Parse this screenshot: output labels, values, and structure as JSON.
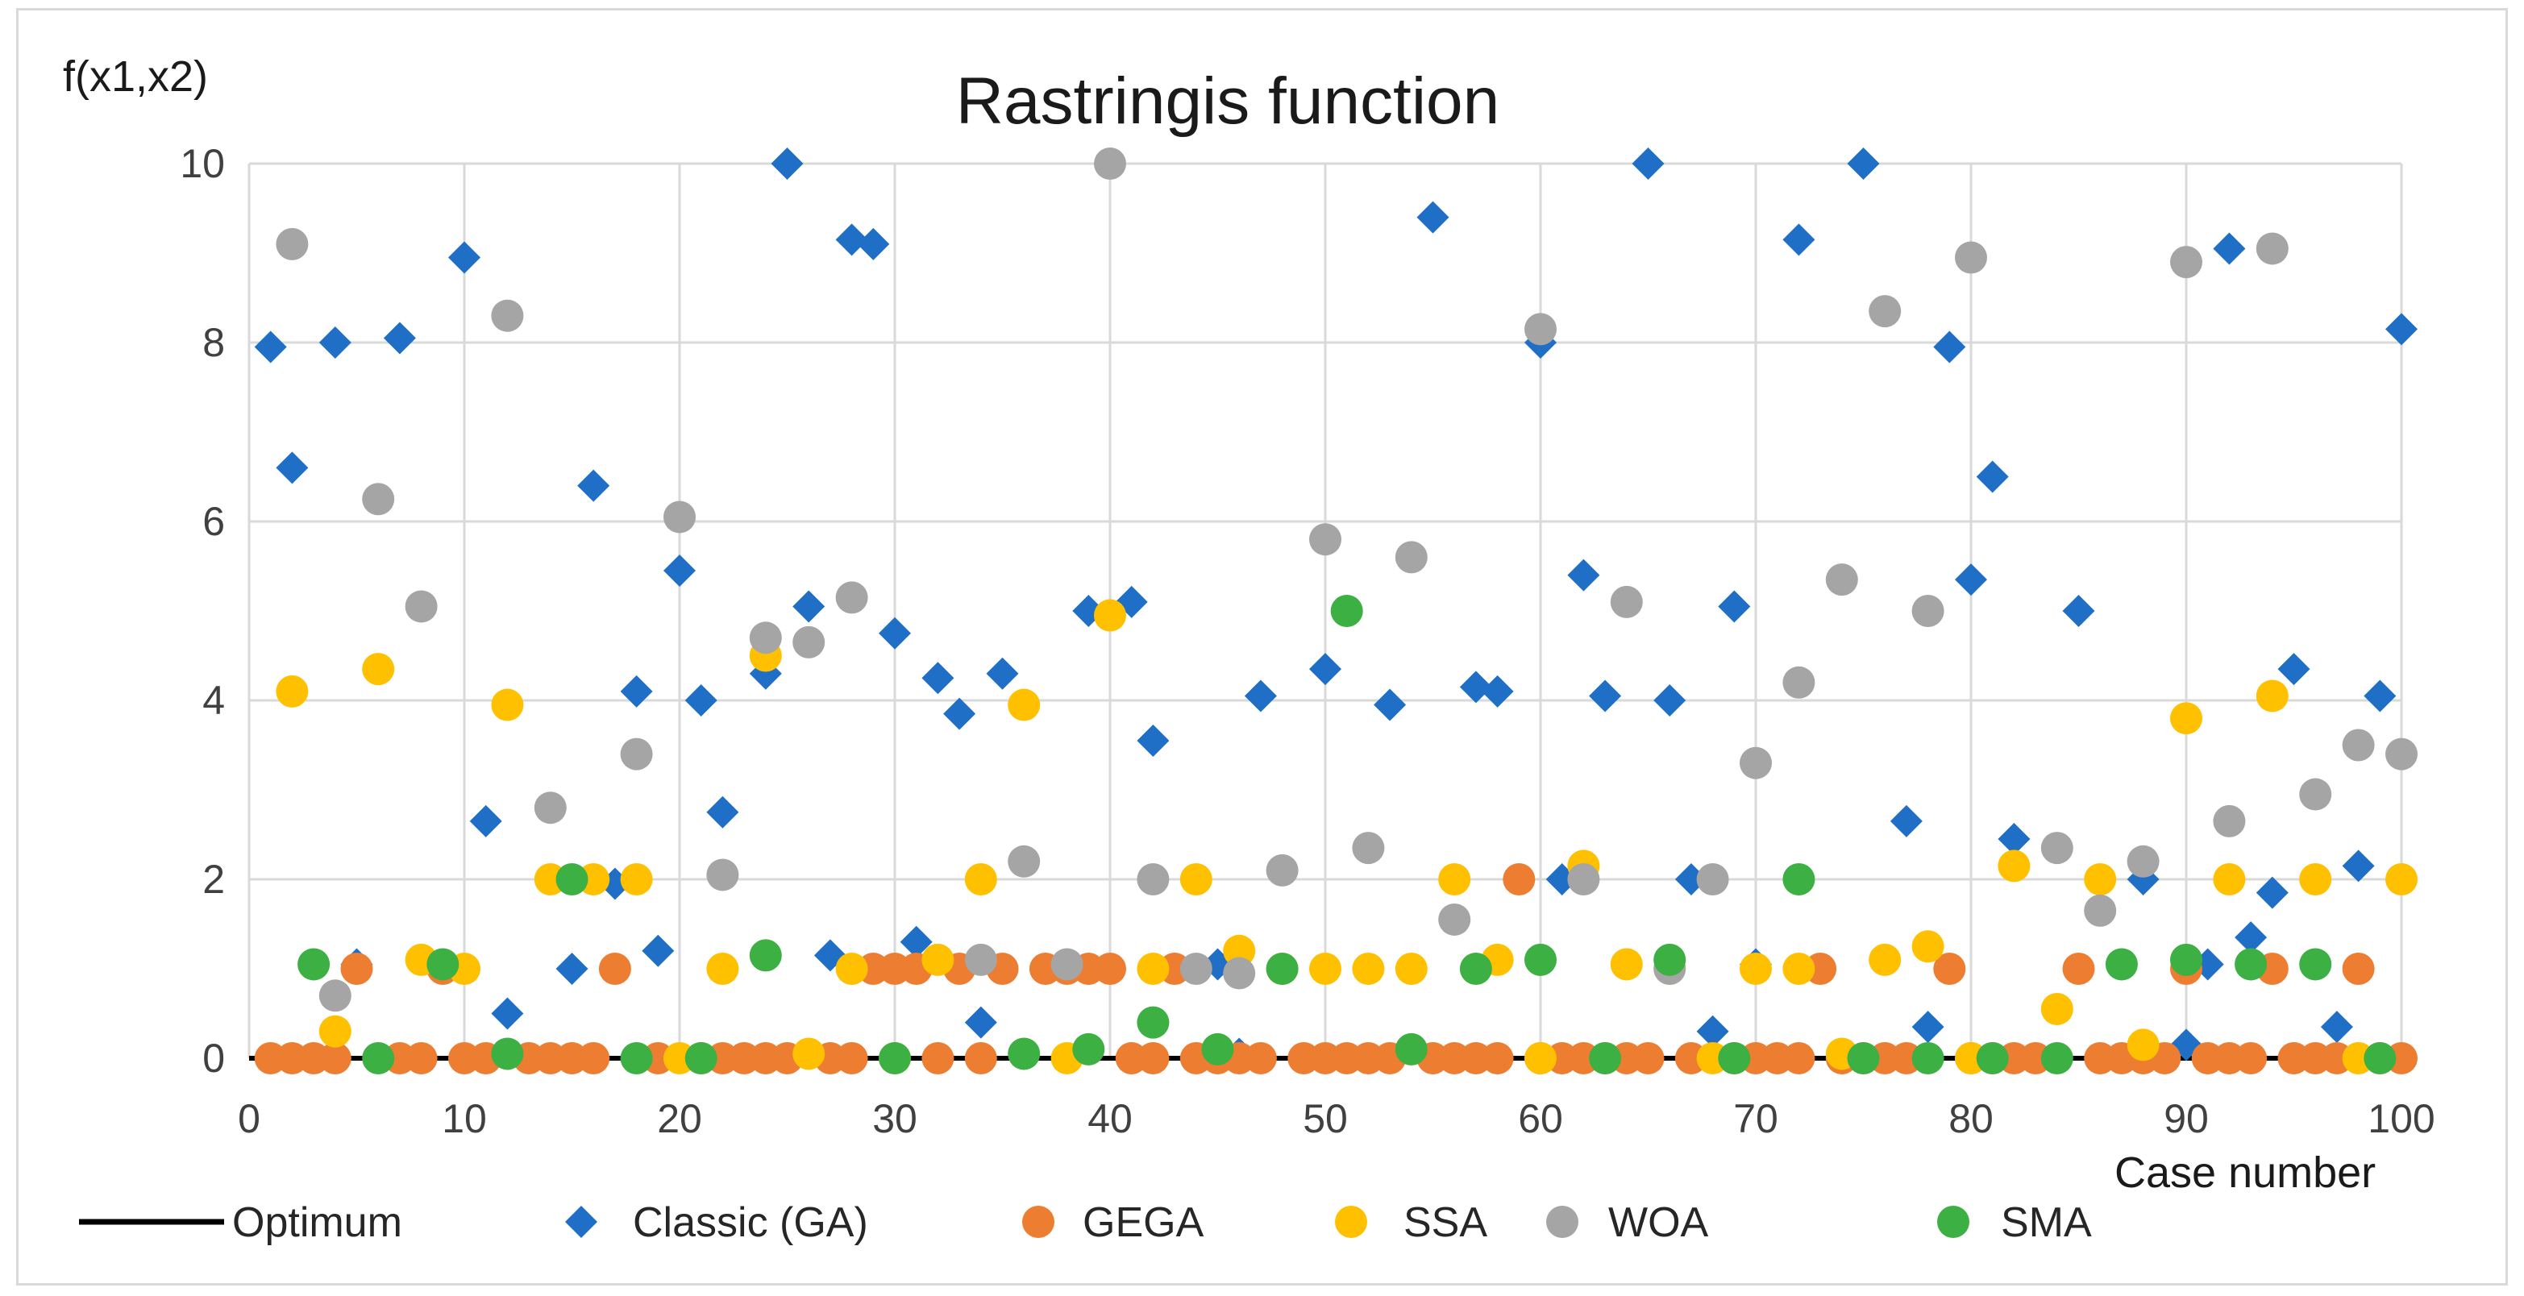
{
  "chart_data": {
    "type": "scatter",
    "title": "Rastringis function",
    "ylabel": "f(x1,x2)",
    "xlabel": "Case number",
    "xlim": [
      0,
      100
    ],
    "ylim": [
      0,
      10
    ],
    "xticks": [
      0,
      10,
      20,
      30,
      40,
      50,
      60,
      70,
      80,
      90,
      100
    ],
    "yticks": [
      0,
      2,
      4,
      6,
      8,
      10
    ],
    "grid": true,
    "legend_position": "bottom",
    "series": [
      {
        "name": "Optimum",
        "marker": "line",
        "color": "#000000",
        "points": [
          [
            0,
            0
          ],
          [
            100,
            0
          ]
        ]
      },
      {
        "name": "Classic (GA)",
        "marker": "diamond",
        "color": "#1F6FC6",
        "points": [
          [
            1,
            7.95
          ],
          [
            2,
            6.6
          ],
          [
            4,
            8.0
          ],
          [
            5,
            1.05
          ],
          [
            7,
            8.05
          ],
          [
            10,
            8.95
          ],
          [
            11,
            2.65
          ],
          [
            12,
            0.5
          ],
          [
            15,
            1.0
          ],
          [
            16,
            6.4
          ],
          [
            17,
            1.95
          ],
          [
            18,
            4.1
          ],
          [
            19,
            1.2
          ],
          [
            20,
            5.45
          ],
          [
            21,
            4.0
          ],
          [
            22,
            2.75
          ],
          [
            24,
            4.3
          ],
          [
            25,
            10.0
          ],
          [
            26,
            5.05
          ],
          [
            27,
            1.15
          ],
          [
            28,
            9.15
          ],
          [
            29,
            9.1
          ],
          [
            30,
            4.75
          ],
          [
            31,
            1.3
          ],
          [
            32,
            4.25
          ],
          [
            33,
            3.85
          ],
          [
            34,
            0.4
          ],
          [
            35,
            4.3
          ],
          [
            39,
            5.0
          ],
          [
            41,
            5.1
          ],
          [
            42,
            3.55
          ],
          [
            45,
            1.05
          ],
          [
            46,
            0.05
          ],
          [
            47,
            4.05
          ],
          [
            50,
            4.35
          ],
          [
            53,
            3.95
          ],
          [
            55,
            9.4
          ],
          [
            57,
            4.15
          ],
          [
            58,
            4.1
          ],
          [
            60,
            8.0
          ],
          [
            61,
            2.0
          ],
          [
            62,
            5.4
          ],
          [
            63,
            4.05
          ],
          [
            65,
            10.0
          ],
          [
            66,
            4.0
          ],
          [
            67,
            2.0
          ],
          [
            68,
            0.3
          ],
          [
            69,
            5.05
          ],
          [
            70,
            1.05
          ],
          [
            72,
            9.15
          ],
          [
            75,
            10.0
          ],
          [
            77,
            2.65
          ],
          [
            78,
            0.35
          ],
          [
            79,
            7.95
          ],
          [
            80,
            5.35
          ],
          [
            81,
            6.5
          ],
          [
            82,
            2.45
          ],
          [
            85,
            5.0
          ],
          [
            88,
            2.0
          ],
          [
            90,
            0.15
          ],
          [
            91,
            1.05
          ],
          [
            92,
            9.05
          ],
          [
            93,
            1.35
          ],
          [
            94,
            1.85
          ],
          [
            95,
            4.35
          ],
          [
            97,
            0.35
          ],
          [
            98,
            2.15
          ],
          [
            99,
            4.05
          ],
          [
            100,
            8.15
          ]
        ]
      },
      {
        "name": "GEGA",
        "marker": "circle",
        "color": "#ED7D31",
        "points": [
          [
            1,
            0
          ],
          [
            2,
            0
          ],
          [
            3,
            0
          ],
          [
            4,
            0
          ],
          [
            5,
            1.0
          ],
          [
            7,
            0
          ],
          [
            8,
            0
          ],
          [
            9,
            1.0
          ],
          [
            10,
            0
          ],
          [
            11,
            0
          ],
          [
            13,
            0
          ],
          [
            14,
            0
          ],
          [
            15,
            0
          ],
          [
            16,
            0
          ],
          [
            17,
            1.0
          ],
          [
            19,
            0
          ],
          [
            21,
            0
          ],
          [
            22,
            0
          ],
          [
            23,
            0
          ],
          [
            24,
            0
          ],
          [
            25,
            0
          ],
          [
            27,
            0
          ],
          [
            28,
            0
          ],
          [
            29,
            1.0
          ],
          [
            30,
            1.0
          ],
          [
            31,
            1.0
          ],
          [
            32,
            0
          ],
          [
            33,
            1.0
          ],
          [
            34,
            0
          ],
          [
            35,
            1.0
          ],
          [
            37,
            1.0
          ],
          [
            38,
            1.0
          ],
          [
            39,
            1.0
          ],
          [
            40,
            1.0
          ],
          [
            41,
            0
          ],
          [
            42,
            0
          ],
          [
            43,
            1.0
          ],
          [
            44,
            0
          ],
          [
            45,
            0
          ],
          [
            46,
            0
          ],
          [
            47,
            0
          ],
          [
            49,
            0
          ],
          [
            50,
            0
          ],
          [
            51,
            0
          ],
          [
            52,
            0
          ],
          [
            53,
            0
          ],
          [
            55,
            0
          ],
          [
            56,
            0
          ],
          [
            57,
            0
          ],
          [
            58,
            0
          ],
          [
            59,
            2.0
          ],
          [
            60,
            0
          ],
          [
            61,
            0
          ],
          [
            62,
            0
          ],
          [
            63,
            0
          ],
          [
            64,
            0
          ],
          [
            65,
            0
          ],
          [
            67,
            0
          ],
          [
            69,
            0
          ],
          [
            70,
            0
          ],
          [
            71,
            0
          ],
          [
            72,
            0
          ],
          [
            73,
            1.0
          ],
          [
            74,
            0
          ],
          [
            75,
            0
          ],
          [
            76,
            0
          ],
          [
            77,
            0
          ],
          [
            79,
            1.0
          ],
          [
            80,
            0
          ],
          [
            81,
            0
          ],
          [
            82,
            0
          ],
          [
            83,
            0
          ],
          [
            85,
            1.0
          ],
          [
            86,
            0
          ],
          [
            87,
            0
          ],
          [
            88,
            0
          ],
          [
            89,
            0
          ],
          [
            90,
            1.0
          ],
          [
            91,
            0
          ],
          [
            92,
            0
          ],
          [
            93,
            0
          ],
          [
            94,
            1.0
          ],
          [
            95,
            0
          ],
          [
            96,
            0
          ],
          [
            97,
            0
          ],
          [
            98,
            1.0
          ],
          [
            99,
            0
          ],
          [
            100,
            0
          ]
        ]
      },
      {
        "name": "SSA",
        "marker": "circle",
        "color": "#FFC000",
        "points": [
          [
            2,
            4.1
          ],
          [
            4,
            0.3
          ],
          [
            6,
            4.35
          ],
          [
            8,
            1.1
          ],
          [
            10,
            1.0
          ],
          [
            12,
            3.95
          ],
          [
            14,
            2.0
          ],
          [
            16,
            2.0
          ],
          [
            18,
            2.0
          ],
          [
            20,
            0
          ],
          [
            22,
            1.0
          ],
          [
            24,
            4.5
          ],
          [
            26,
            0.05
          ],
          [
            28,
            1.0
          ],
          [
            30,
            0
          ],
          [
            32,
            1.1
          ],
          [
            34,
            2.0
          ],
          [
            36,
            3.95
          ],
          [
            38,
            0
          ],
          [
            40,
            4.95
          ],
          [
            42,
            1.0
          ],
          [
            44,
            2.0
          ],
          [
            46,
            1.2
          ],
          [
            48,
            1.0
          ],
          [
            50,
            1.0
          ],
          [
            52,
            1.0
          ],
          [
            54,
            1.0
          ],
          [
            56,
            2.0
          ],
          [
            58,
            1.1
          ],
          [
            60,
            0
          ],
          [
            62,
            2.15
          ],
          [
            64,
            1.05
          ],
          [
            66,
            1.0
          ],
          [
            68,
            0
          ],
          [
            70,
            1.0
          ],
          [
            72,
            1.0
          ],
          [
            74,
            0.05
          ],
          [
            76,
            1.1
          ],
          [
            78,
            1.25
          ],
          [
            80,
            0
          ],
          [
            82,
            2.15
          ],
          [
            84,
            0.55
          ],
          [
            86,
            2.0
          ],
          [
            88,
            0.15
          ],
          [
            90,
            3.8
          ],
          [
            92,
            2.0
          ],
          [
            94,
            4.05
          ],
          [
            96,
            2.0
          ],
          [
            98,
            0
          ],
          [
            100,
            2.0
          ]
        ]
      },
      {
        "name": "WOA",
        "marker": "circle",
        "color": "#A5A5A5",
        "points": [
          [
            2,
            9.1
          ],
          [
            4,
            0.7
          ],
          [
            6,
            6.25
          ],
          [
            8,
            5.05
          ],
          [
            12,
            8.3
          ],
          [
            14,
            2.8
          ],
          [
            18,
            3.4
          ],
          [
            20,
            6.05
          ],
          [
            22,
            2.05
          ],
          [
            24,
            4.7
          ],
          [
            26,
            4.65
          ],
          [
            28,
            5.15
          ],
          [
            34,
            1.1
          ],
          [
            36,
            2.2
          ],
          [
            38,
            1.05
          ],
          [
            40,
            10.0
          ],
          [
            42,
            2.0
          ],
          [
            44,
            1.0
          ],
          [
            46,
            0.95
          ],
          [
            48,
            2.1
          ],
          [
            50,
            5.8
          ],
          [
            52,
            2.35
          ],
          [
            54,
            5.6
          ],
          [
            56,
            1.55
          ],
          [
            60,
            8.15
          ],
          [
            62,
            2.0
          ],
          [
            64,
            5.1
          ],
          [
            66,
            1.0
          ],
          [
            68,
            2.0
          ],
          [
            70,
            3.3
          ],
          [
            72,
            4.2
          ],
          [
            74,
            5.35
          ],
          [
            76,
            8.35
          ],
          [
            78,
            5.0
          ],
          [
            80,
            8.95
          ],
          [
            84,
            2.35
          ],
          [
            86,
            1.65
          ],
          [
            88,
            2.2
          ],
          [
            90,
            8.9
          ],
          [
            92,
            2.65
          ],
          [
            94,
            9.05
          ],
          [
            96,
            2.95
          ],
          [
            98,
            3.5
          ],
          [
            100,
            3.4
          ]
        ]
      },
      {
        "name": "SMA",
        "marker": "circle",
        "color": "#3CB043",
        "points": [
          [
            3,
            1.05
          ],
          [
            6,
            0
          ],
          [
            9,
            1.05
          ],
          [
            12,
            0.05
          ],
          [
            15,
            2.0
          ],
          [
            18,
            0
          ],
          [
            21,
            0
          ],
          [
            24,
            1.15
          ],
          [
            30,
            0
          ],
          [
            36,
            0.05
          ],
          [
            39,
            0.1
          ],
          [
            42,
            0.4
          ],
          [
            45,
            0.1
          ],
          [
            48,
            1.0
          ],
          [
            51,
            5.0
          ],
          [
            54,
            0.1
          ],
          [
            57,
            1.0
          ],
          [
            60,
            1.1
          ],
          [
            63,
            0
          ],
          [
            66,
            1.1
          ],
          [
            69,
            0
          ],
          [
            72,
            2.0
          ],
          [
            75,
            0
          ],
          [
            78,
            0
          ],
          [
            81,
            0
          ],
          [
            84,
            0
          ],
          [
            87,
            1.05
          ],
          [
            90,
            1.1
          ],
          [
            93,
            1.05
          ],
          [
            96,
            1.05
          ],
          [
            99,
            0
          ]
        ]
      }
    ]
  }
}
